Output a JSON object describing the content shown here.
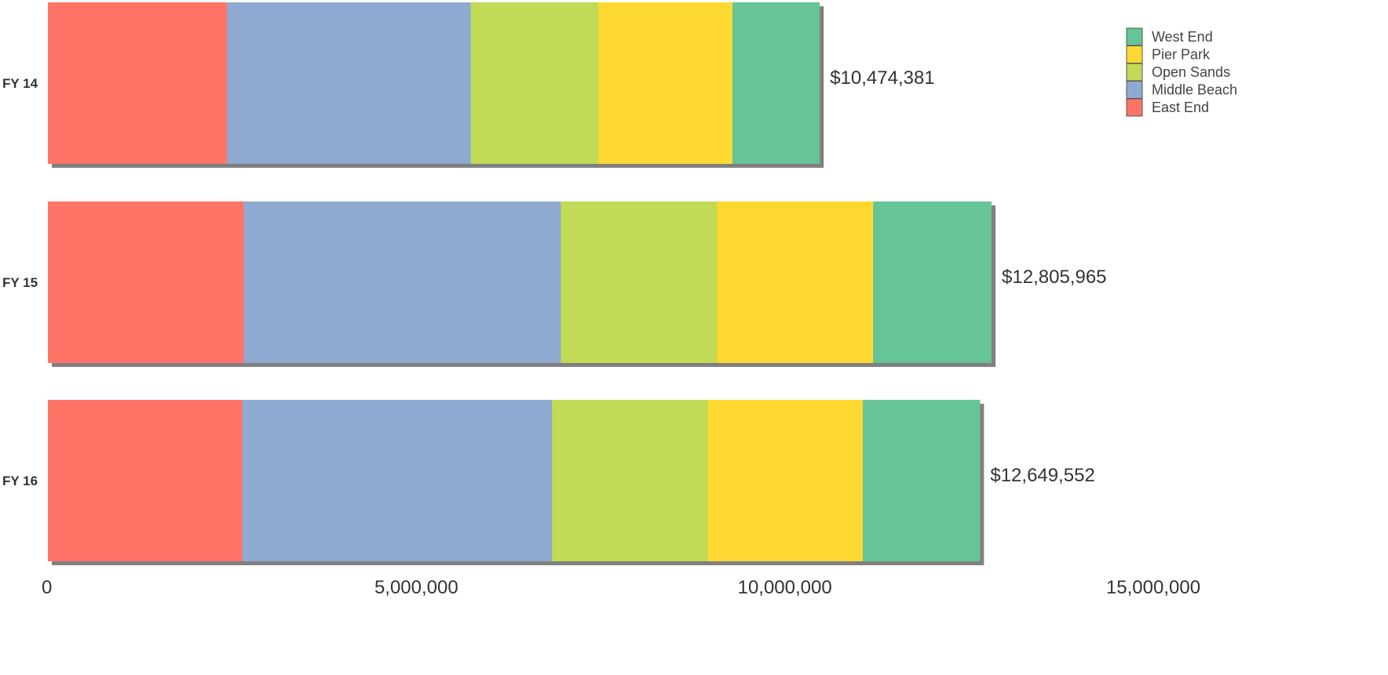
{
  "chart_data": {
    "type": "bar",
    "orientation": "horizontal",
    "stacked": true,
    "categories": [
      "FY 14",
      "FY 15",
      "FY 16"
    ],
    "series": [
      {
        "name": "East End",
        "color": "#FF7466",
        "values": [
          2430000,
          2660000,
          2640000
        ]
      },
      {
        "name": "Middle Beach",
        "color": "#8FAAD1",
        "values": [
          3310000,
          4300000,
          4200000
        ]
      },
      {
        "name": "Open Sands",
        "color": "#C1DB56",
        "values": [
          1730000,
          2120000,
          2120000
        ]
      },
      {
        "name": "Pier Park",
        "color": "#FFD931",
        "values": [
          1820000,
          2120000,
          2100000
        ]
      },
      {
        "name": "West End",
        "color": "#66C497",
        "values": [
          1184381,
          1605965,
          1589552
        ]
      }
    ],
    "totals": [
      10474381,
      12805965,
      12649552
    ],
    "total_labels": [
      "$10,474,381",
      "$12,805,965",
      "$12,649,552"
    ],
    "xlim": [
      0,
      15000000
    ],
    "x_ticks": [
      0,
      5000000,
      10000000,
      15000000
    ],
    "x_tick_labels": [
      "0",
      "5,000,000",
      "10,000,000",
      "15,000,000"
    ],
    "title": "",
    "xlabel": "",
    "ylabel": "",
    "grid": false,
    "legend_position": "top-right",
    "legend_order": [
      "West End",
      "Pier Park",
      "Open Sands",
      "Middle Beach",
      "East End"
    ]
  }
}
